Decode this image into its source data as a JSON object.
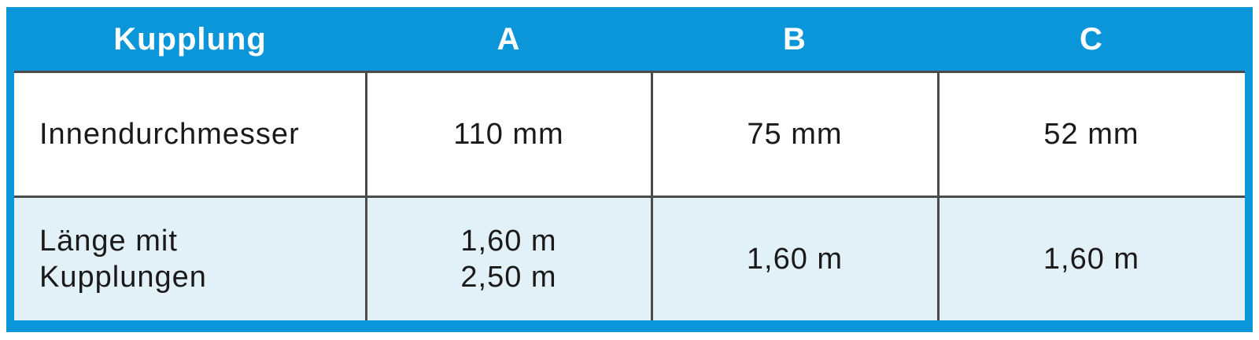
{
  "table": {
    "header": [
      "Kupplung",
      "A",
      "B",
      "C"
    ],
    "rows": [
      [
        "Innendurchmesser",
        "110 mm",
        "75 mm",
        "52 mm"
      ],
      [
        [
          "Länge mit",
          "Kupplungen"
        ],
        [
          "1,60 m",
          "2,50 m"
        ],
        "1,60 m",
        "1,60 m"
      ]
    ]
  }
}
